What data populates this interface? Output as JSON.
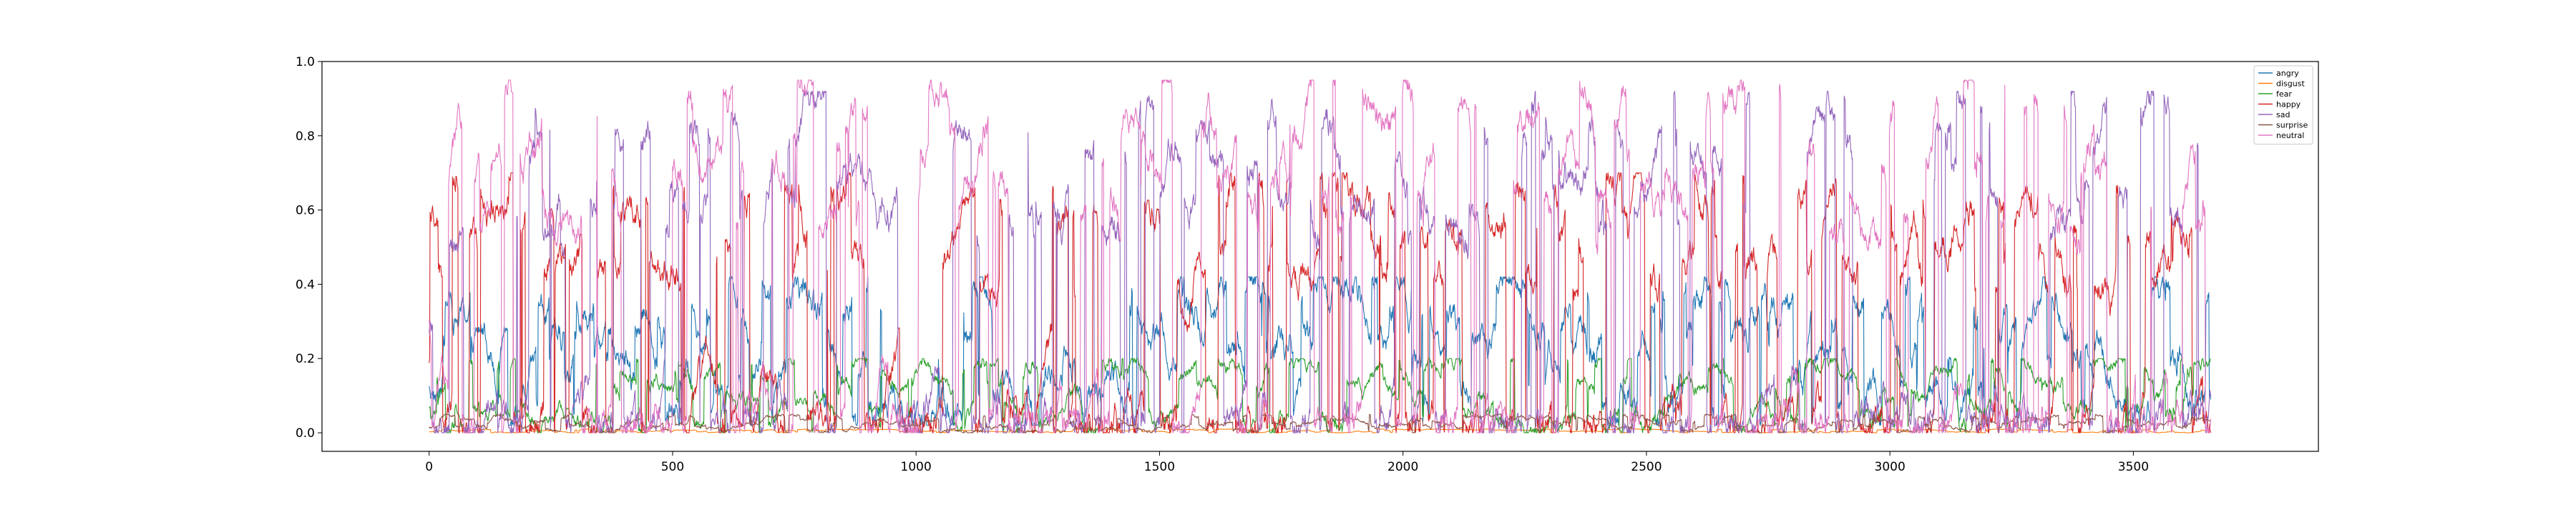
{
  "chart_data": {
    "type": "line",
    "title": "",
    "xlabel": "",
    "ylabel": "",
    "xlim": [
      -220,
      3880
    ],
    "ylim": [
      -0.05,
      1.0
    ],
    "n_points": 3660,
    "x_ticks": [
      0,
      500,
      1000,
      1500,
      2000,
      2500,
      3000,
      3500
    ],
    "x_tick_labels": [
      "0",
      "500",
      "1000",
      "1500",
      "2000",
      "2500",
      "3000",
      "3500"
    ],
    "y_ticks": [
      0.0,
      0.2,
      0.4,
      0.6,
      0.8,
      1.0
    ],
    "y_tick_labels": [
      "0.0",
      "0.2",
      "0.4",
      "0.6",
      "0.8",
      "1.0"
    ],
    "grid": false,
    "legend_position": "top-right",
    "series": [
      {
        "name": "angry",
        "color": "#1f77b4",
        "level": [
          0.02,
          0.42
        ],
        "note_values": "dense per-frame series, values roughly 0.0–0.5"
      },
      {
        "name": "disgust",
        "color": "#ff7f0e",
        "level": [
          0.0,
          0.01
        ],
        "note_values": "near zero throughout"
      },
      {
        "name": "fear",
        "color": "#2ca02c",
        "level": [
          0.0,
          0.2
        ],
        "note_values": "mostly 0.0–0.2 with spikes"
      },
      {
        "name": "happy",
        "color": "#d62728",
        "level": [
          0.0,
          0.7
        ],
        "note_values": "mostly low, occasional plateaus up to ~0.7"
      },
      {
        "name": "sad",
        "color": "#9467bd",
        "level": [
          0.0,
          0.92
        ],
        "note_values": "frequent swings between 0.0 and ~0.9"
      },
      {
        "name": "surprise",
        "color": "#8c564b",
        "level": [
          0.0,
          0.05
        ],
        "note_values": "near zero"
      },
      {
        "name": "neutral",
        "color": "#e377c2",
        "level": [
          0.0,
          0.95
        ],
        "note_values": "frequent swings between 0.0 and ~0.95"
      }
    ]
  }
}
